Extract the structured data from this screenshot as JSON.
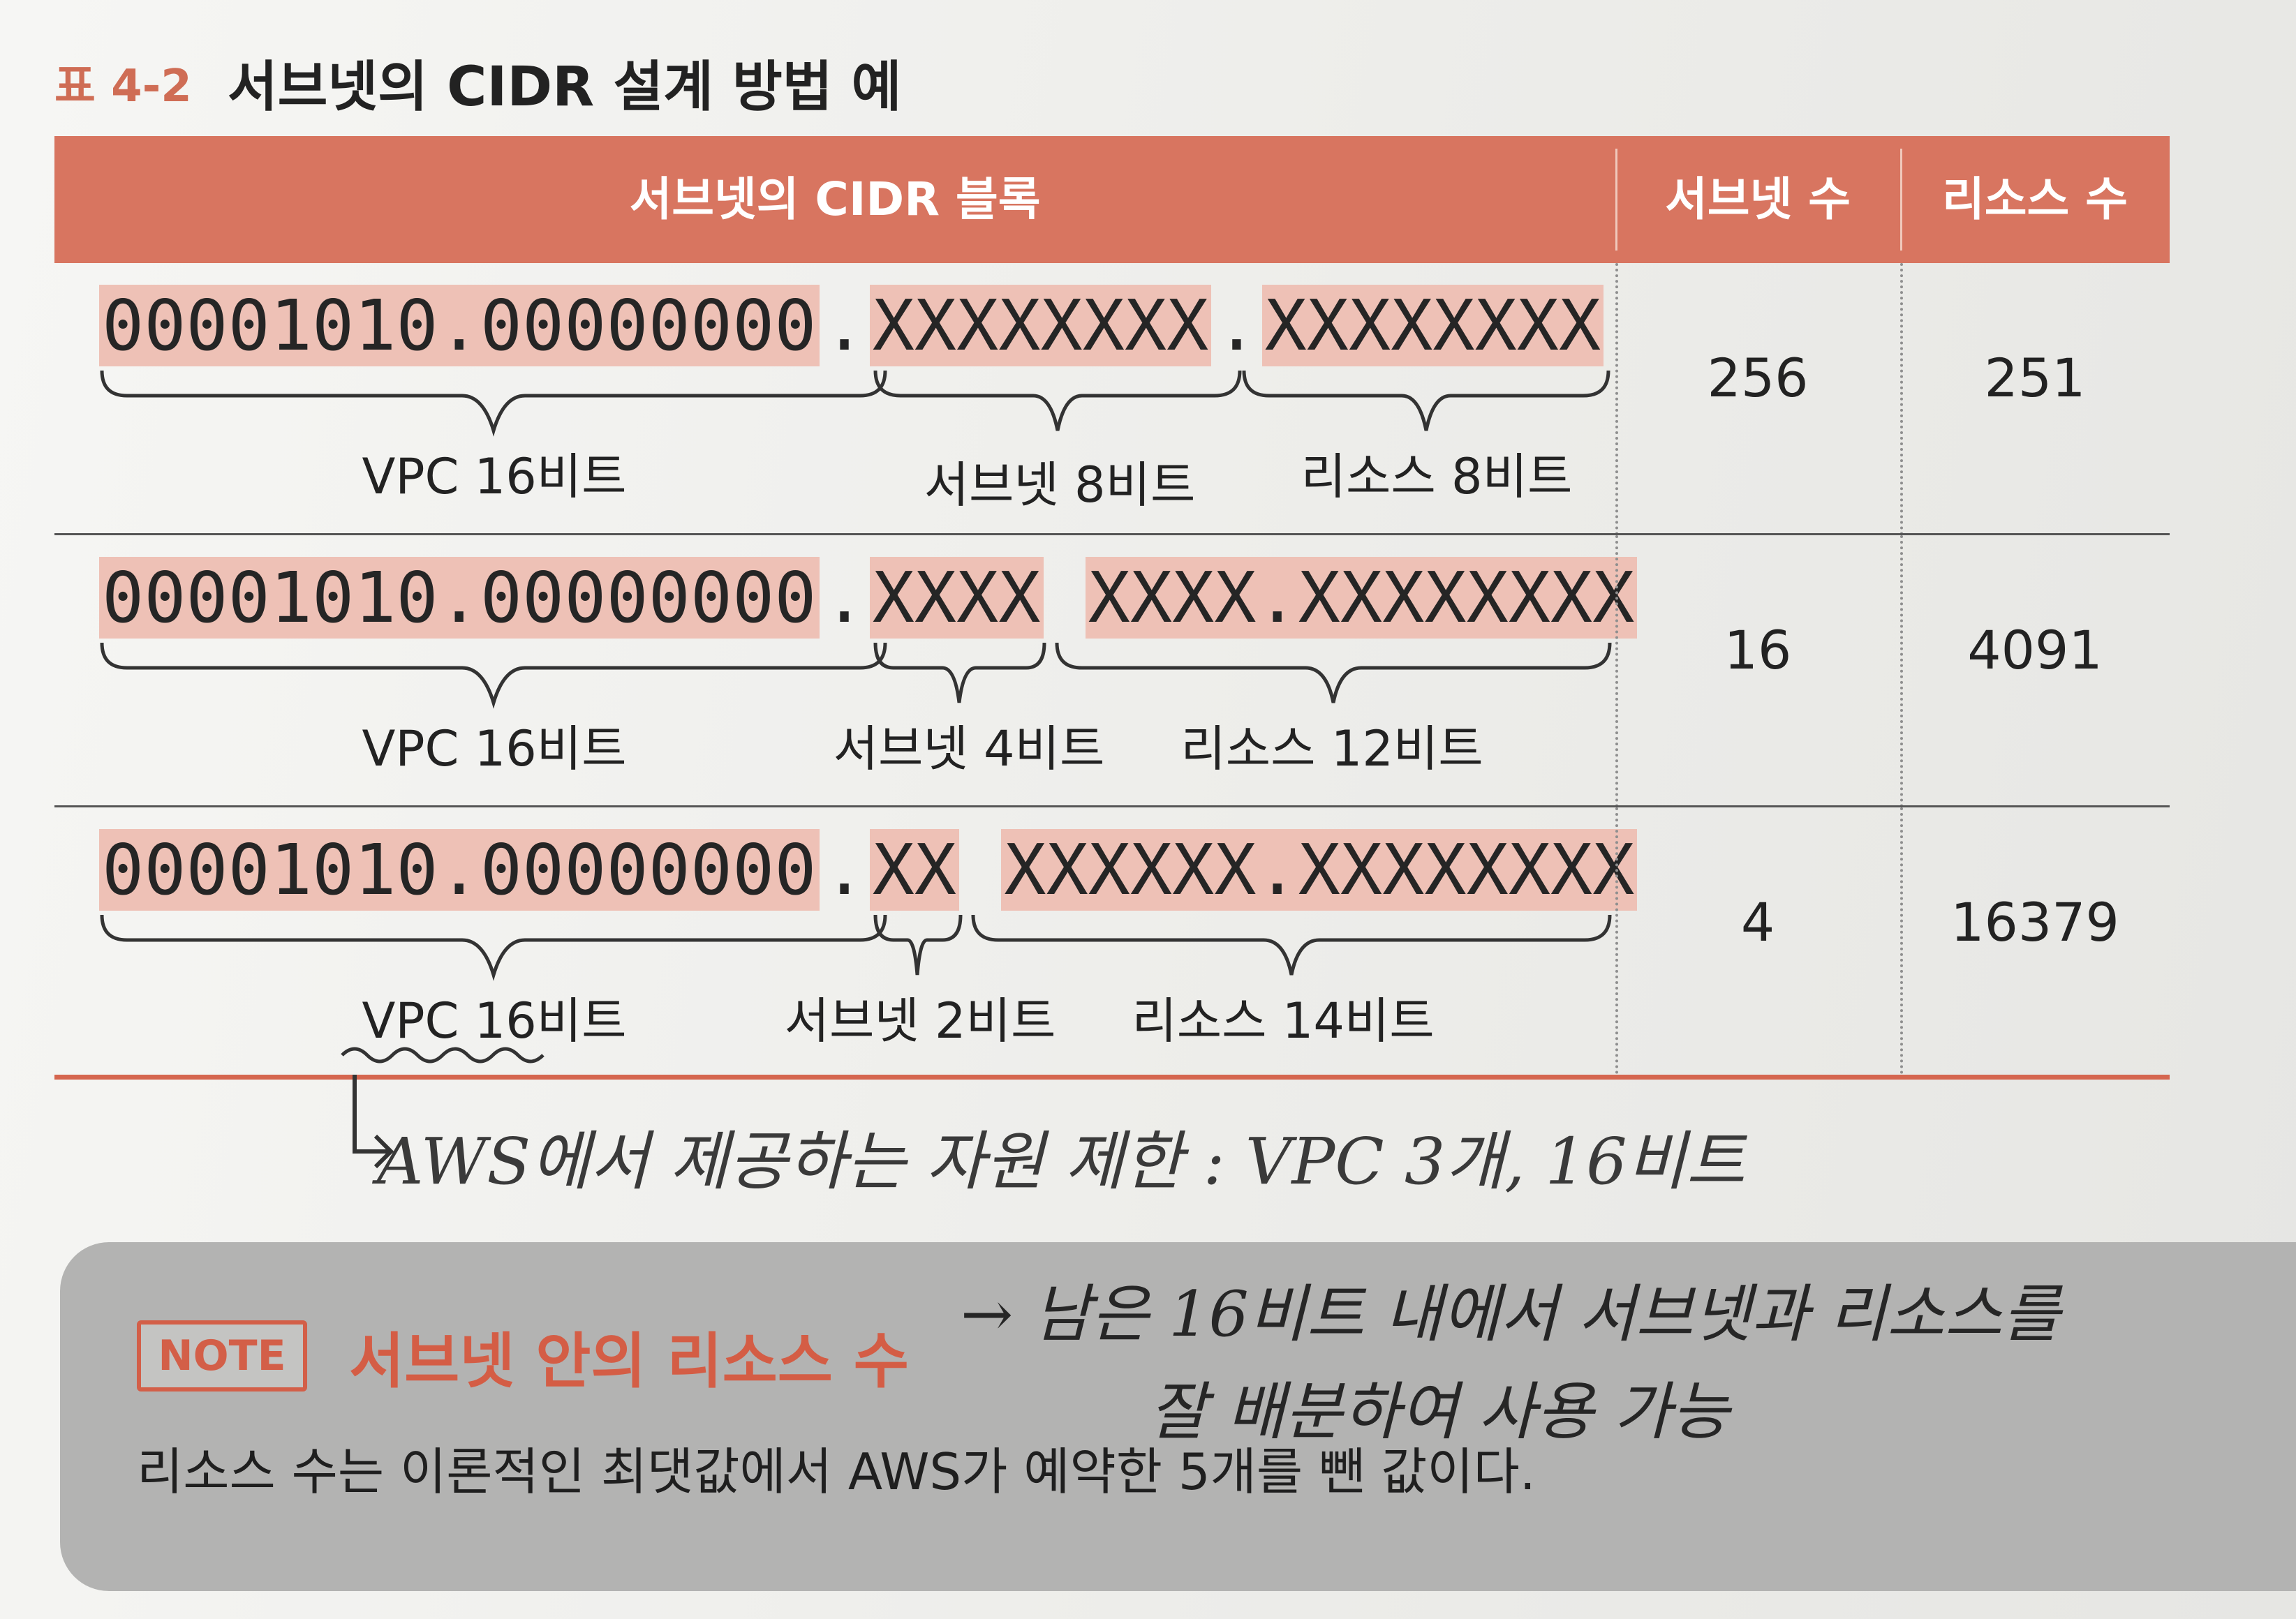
{
  "caption": {
    "number": "표 4-2",
    "title": "서브넷의 CIDR 설계 방법 예"
  },
  "table": {
    "headers": {
      "cidr_block": "서브넷의 CIDR 블록",
      "subnet_count": "서브넷 수",
      "resource_count": "리소스 수"
    },
    "rows": [
      {
        "vpc_bits": "00001010.00000000",
        "subnet_bits": "XXXXXXXX",
        "resource_bits": "XXXXXXXX",
        "vpc_label": "VPC 16비트",
        "subnet_label": "서브넷 8비트",
        "resource_label": "리소스 8비트",
        "subnet_count": "256",
        "resource_count": "251"
      },
      {
        "vpc_bits": "00001010.00000000",
        "subnet_bits": "XXXX",
        "resource_bits": "XXXX.XXXXXXXX",
        "vpc_label": "VPC 16비트",
        "subnet_label": "서브넷 4비트",
        "resource_label": "리소스 12비트",
        "subnet_count": "16",
        "resource_count": "4091"
      },
      {
        "vpc_bits": "00001010.00000000",
        "subnet_bits": "XX",
        "resource_bits": "XXXXXX.XXXXXXXX",
        "vpc_label": "VPC 16비트",
        "subnet_label": "서브넷 2비트",
        "resource_label": "리소스 14비트",
        "subnet_count": "4",
        "resource_count": "16379"
      }
    ],
    "separator": "."
  },
  "handwritten_note": "AWS에서 제공하는 자원 제한 : VPC 3개, 16비트",
  "note": {
    "tag": "NOTE",
    "title": "서브넷 안의 리소스 수",
    "handwritten_line1": "→ 남은 16비트 내에서 서브넷과 리소스를",
    "handwritten_line2": "잘 배분하여 사용 가능",
    "body": "리소스 수는 이론적인 최댓값에서 AWS가 예약한 5개를 뺀 값이다."
  },
  "colors": {
    "header": "#d87560",
    "highlight": "#eec1b6",
    "accent": "#cf6d55",
    "note_bg": "#b3b3b2"
  }
}
